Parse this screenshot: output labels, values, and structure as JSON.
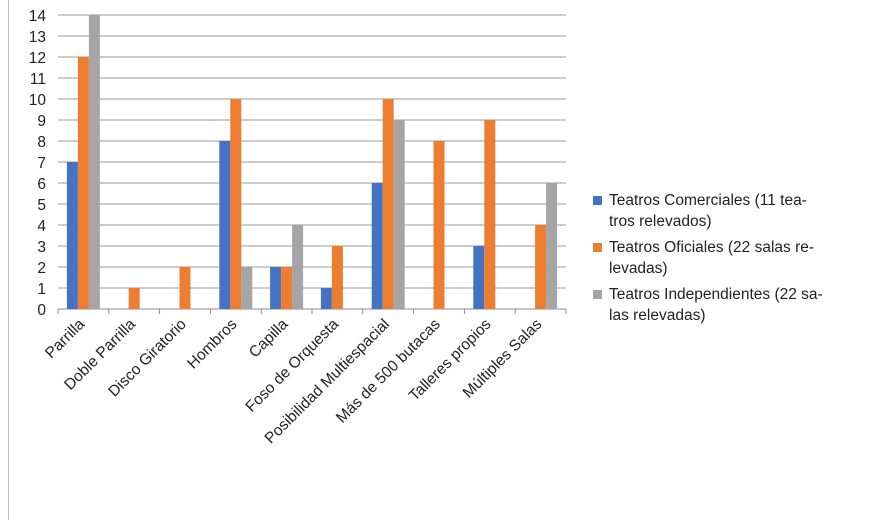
{
  "chart_data": {
    "type": "bar",
    "categories": [
      "Parrilla",
      "Doble Parrilla",
      "Disco Giratorio",
      "Hombros",
      "Capilla",
      "Foso de Orquesta",
      "Posibilidad Multiespacial",
      "Más de 500 butacas",
      "Talleres propios",
      "Múltiples Salas"
    ],
    "series": [
      {
        "name": "Teatros Comerciales (11 teatros relevados)",
        "legend_lines": [
          "Teatros Comerciales (11 tea-",
          "tros relevados)"
        ],
        "color": "#4472C4",
        "values": [
          7,
          0,
          0,
          8,
          2,
          1,
          6,
          0,
          3,
          0
        ]
      },
      {
        "name": "Teatros Oficiales (22 salas relevadas)",
        "legend_lines": [
          "Teatros Oficiales (22 salas re-",
          "levadas)"
        ],
        "color": "#ED7D31",
        "values": [
          12,
          1,
          2,
          10,
          2,
          3,
          10,
          8,
          9,
          4
        ]
      },
      {
        "name": "Teatros Independientes (22 salas relevadas)",
        "legend_lines": [
          "Teatros Independientes (22 sa-",
          "las relevadas)"
        ],
        "color": "#A5A5A5",
        "values": [
          14,
          0,
          0,
          2,
          4,
          0,
          9,
          0,
          0,
          6
        ]
      }
    ],
    "ylim": [
      0,
      14
    ],
    "yticks": [
      "0",
      "1",
      "2",
      "3",
      "4",
      "5",
      "6",
      "7",
      "8",
      "9",
      "10",
      "11",
      "12",
      "13",
      "14"
    ],
    "grid": true,
    "legend_position": "right",
    "title": "",
    "xlabel": "",
    "ylabel": ""
  }
}
